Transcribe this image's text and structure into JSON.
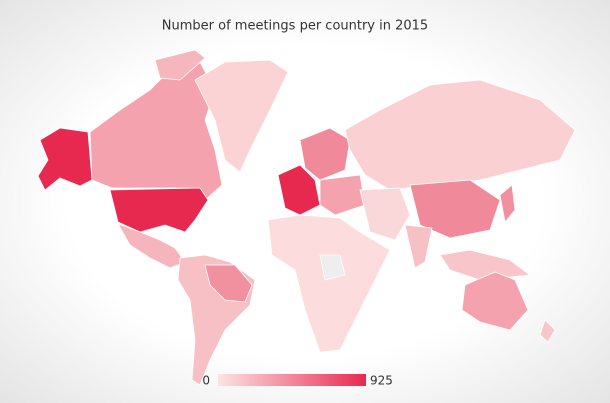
{
  "title": "Number of meetings per country in 2015",
  "legend": {
    "min": 0,
    "max": 925,
    "min_color": "#fde3e3",
    "max_color": "#e8294f"
  }
}
